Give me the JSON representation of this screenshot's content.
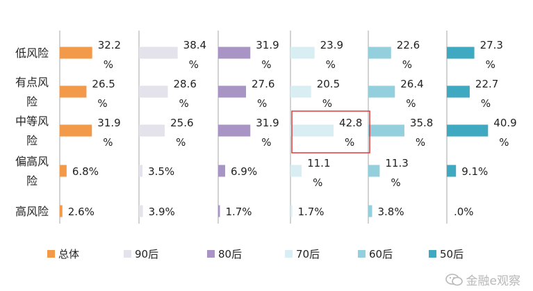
{
  "chart_data": {
    "type": "bar",
    "orientation": "horizontal",
    "layout": "small-multiples",
    "categories": [
      "低风险",
      "有点风险",
      "中等风险",
      "偏高风险",
      "高风险"
    ],
    "category_labels": [
      [
        "低风险"
      ],
      [
        "有点风",
        "险"
      ],
      [
        "中等风",
        "险"
      ],
      [
        "偏高风",
        "险"
      ],
      [
        "高风险"
      ]
    ],
    "series": [
      {
        "name": "总体",
        "color": "#f39a4a",
        "values": [
          32.2,
          26.5,
          31.9,
          6.8,
          2.6
        ],
        "labels": [
          [
            "32.2",
            "%"
          ],
          [
            "26.5",
            "%"
          ],
          [
            "31.9",
            "%"
          ],
          [
            "6.8%"
          ],
          [
            "2.6%"
          ]
        ]
      },
      {
        "name": "90后",
        "color": "#e4e2ea",
        "values": [
          38.4,
          28.6,
          25.6,
          3.5,
          3.9
        ],
        "labels": [
          [
            "38.4",
            "%"
          ],
          [
            "28.6",
            "%"
          ],
          [
            "25.6",
            "%"
          ],
          [
            "3.5%"
          ],
          [
            "3.9%"
          ]
        ]
      },
      {
        "name": "80后",
        "color": "#a994c6",
        "values": [
          31.9,
          27.6,
          31.9,
          6.9,
          1.7
        ],
        "labels": [
          [
            "31.9",
            "%"
          ],
          [
            "27.6",
            "%"
          ],
          [
            "31.9",
            "%"
          ],
          [
            "6.9%"
          ],
          [
            "1.7%"
          ]
        ]
      },
      {
        "name": "70后",
        "color": "#d9eef2",
        "values": [
          23.9,
          20.5,
          42.8,
          11.1,
          1.7
        ],
        "labels": [
          [
            "23.9",
            "%"
          ],
          [
            "20.5",
            "%"
          ],
          [
            "42.8",
            "%"
          ],
          [
            "11.1",
            "%"
          ],
          [
            "1.7%"
          ]
        ]
      },
      {
        "name": "60后",
        "color": "#94cfde",
        "values": [
          22.6,
          26.4,
          35.8,
          11.3,
          3.8
        ],
        "labels": [
          [
            "22.6",
            "%"
          ],
          [
            "26.4",
            "%"
          ],
          [
            "35.8",
            "%"
          ],
          [
            "11.3",
            "%"
          ],
          [
            "3.8%"
          ]
        ]
      },
      {
        "name": "50后",
        "color": "#3ea9c1",
        "values": [
          27.3,
          22.7,
          40.9,
          9.1,
          0.0
        ],
        "labels": [
          [
            "27.3",
            "%"
          ],
          [
            "22.7",
            "%"
          ],
          [
            "40.9",
            "%"
          ],
          [
            "9.1%"
          ],
          [
            ".0%"
          ]
        ]
      }
    ],
    "highlight": {
      "series": "70后",
      "category": "中等风险",
      "color": "#e0393b"
    },
    "axis_color": "#a6a6a6",
    "legend_position": "bottom",
    "xlim": [
      0,
      70
    ]
  },
  "watermark": {
    "text": "金融e观察",
    "icon": "wechat-icon"
  }
}
